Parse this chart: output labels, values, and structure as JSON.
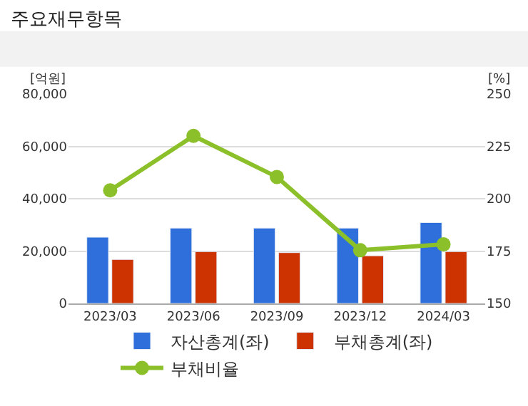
{
  "chart_data": {
    "type": "bar",
    "title": "주요재무항목",
    "ylabel": "[억원]",
    "y2label": "[%]",
    "categories": [
      "2023/03",
      "2023/06",
      "2023/09",
      "2023/12",
      "2024/03"
    ],
    "series": [
      {
        "name": "자산총계(좌)",
        "color": "#2e6fdc",
        "values": [
          25300,
          28800,
          28800,
          28800,
          30900
        ]
      },
      {
        "name": "부채총계(좌)",
        "color": "#cc3300",
        "values": [
          16800,
          19800,
          19400,
          18200,
          19800
        ]
      },
      {
        "name": "부채비율",
        "type": "line",
        "axis": "y2",
        "color": "#8cc02a",
        "values": [
          204,
          230,
          210.4,
          175.4,
          178.2
        ]
      }
    ],
    "ylim": [
      0,
      80000
    ],
    "yticks": [
      {
        "value": 0,
        "label": "0"
      },
      {
        "value": 20000,
        "label": "20,000"
      },
      {
        "value": 40000,
        "label": "40,000"
      },
      {
        "value": 60000,
        "label": "60,000"
      },
      {
        "value": 80000,
        "label": "80,000"
      }
    ],
    "y2lim": [
      150,
      250
    ],
    "y2ticks": [
      150,
      175,
      200,
      225,
      250
    ],
    "grid": "y",
    "legend": "bottom",
    "marker": "circle"
  }
}
